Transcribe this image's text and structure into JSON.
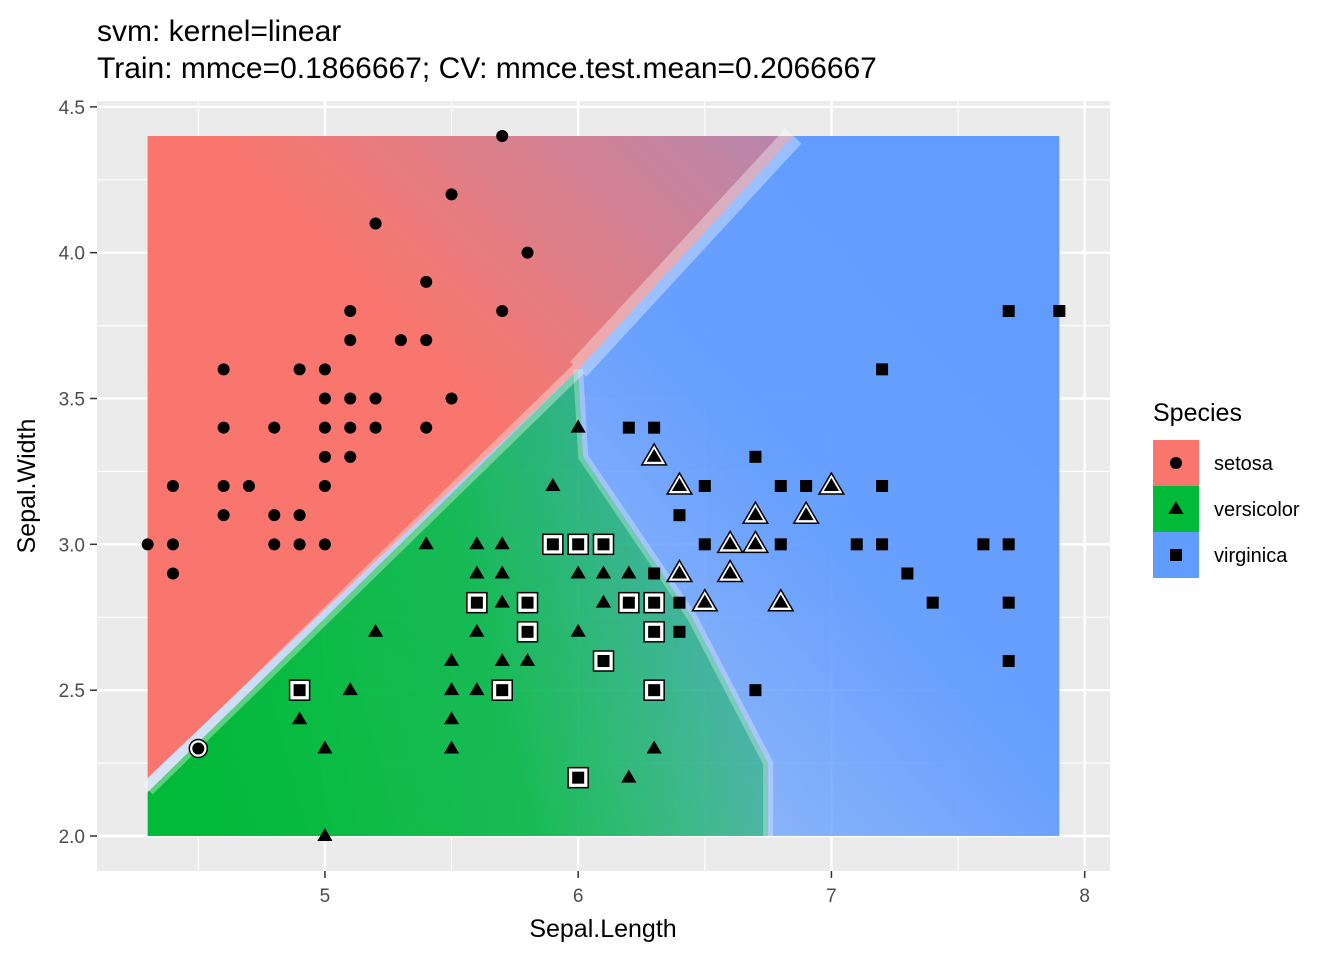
{
  "chart_data": {
    "type": "scatter",
    "title": "svm: kernel=linear",
    "subtitle": "Train: mmce=0.1866667; CV: mmce.test.mean=0.2066667",
    "xlabel": "Sepal.Length",
    "ylabel": "Sepal.Width",
    "xlim": [
      4.1,
      8.1
    ],
    "ylim": [
      1.88,
      4.52
    ],
    "x_ticks": [
      5,
      6,
      7,
      8
    ],
    "x_tick_labels": [
      "5",
      "6",
      "7",
      "8"
    ],
    "y_ticks": [
      2.0,
      2.5,
      3.0,
      3.5,
      4.0,
      4.5
    ],
    "y_tick_labels": [
      "2.0",
      "2.5",
      "3.0",
      "3.5",
      "4.0",
      "4.5"
    ],
    "grid": true,
    "legend": {
      "title": "Species",
      "placement": "right",
      "entries": [
        {
          "name": "setosa",
          "color": "#F8766D",
          "shape": "circle"
        },
        {
          "name": "versicolor",
          "color": "#00BA38",
          "shape": "triangle"
        },
        {
          "name": "virginica",
          "color": "#619CFF",
          "shape": "square"
        }
      ]
    },
    "background_region": {
      "x_range": [
        4.3,
        7.9
      ],
      "y_range": [
        2.0,
        4.4
      ]
    },
    "series": [
      {
        "name": "setosa",
        "shape": "circle",
        "points": [
          [
            4.3,
            3.0
          ],
          [
            4.4,
            2.9
          ],
          [
            4.4,
            3.0
          ],
          [
            4.4,
            3.2
          ],
          [
            4.5,
            2.3
          ],
          [
            4.6,
            3.1
          ],
          [
            4.6,
            3.2
          ],
          [
            4.6,
            3.4
          ],
          [
            4.6,
            3.6
          ],
          [
            4.7,
            3.2
          ],
          [
            4.8,
            3.0
          ],
          [
            4.8,
            3.1
          ],
          [
            4.8,
            3.4
          ],
          [
            4.9,
            3.0
          ],
          [
            4.9,
            3.1
          ],
          [
            4.9,
            3.6
          ],
          [
            5.0,
            3.0
          ],
          [
            5.0,
            3.2
          ],
          [
            5.0,
            3.3
          ],
          [
            5.0,
            3.4
          ],
          [
            5.0,
            3.5
          ],
          [
            5.0,
            3.6
          ],
          [
            5.1,
            3.3
          ],
          [
            5.1,
            3.4
          ],
          [
            5.1,
            3.5
          ],
          [
            5.1,
            3.7
          ],
          [
            5.1,
            3.8
          ],
          [
            5.2,
            3.4
          ],
          [
            5.2,
            3.5
          ],
          [
            5.2,
            4.1
          ],
          [
            5.3,
            3.7
          ],
          [
            5.4,
            3.4
          ],
          [
            5.4,
            3.7
          ],
          [
            5.4,
            3.9
          ],
          [
            5.5,
            3.5
          ],
          [
            5.5,
            4.2
          ],
          [
            5.7,
            3.8
          ],
          [
            5.7,
            4.4
          ],
          [
            5.8,
            4.0
          ]
        ],
        "misclassified": [
          [
            4.5,
            2.3
          ]
        ]
      },
      {
        "name": "versicolor",
        "shape": "triangle",
        "points": [
          [
            4.9,
            2.4
          ],
          [
            5.0,
            2.0
          ],
          [
            5.0,
            2.3
          ],
          [
            5.1,
            2.5
          ],
          [
            5.2,
            2.7
          ],
          [
            5.4,
            3.0
          ],
          [
            5.5,
            2.3
          ],
          [
            5.5,
            2.4
          ],
          [
            5.5,
            2.5
          ],
          [
            5.5,
            2.6
          ],
          [
            5.6,
            2.5
          ],
          [
            5.6,
            2.7
          ],
          [
            5.6,
            2.9
          ],
          [
            5.6,
            3.0
          ],
          [
            5.7,
            2.6
          ],
          [
            5.7,
            2.8
          ],
          [
            5.7,
            2.9
          ],
          [
            5.7,
            3.0
          ],
          [
            5.8,
            2.6
          ],
          [
            5.8,
            2.7
          ],
          [
            5.9,
            3.2
          ],
          [
            6.0,
            2.7
          ],
          [
            6.0,
            2.9
          ],
          [
            6.0,
            3.4
          ],
          [
            6.1,
            2.8
          ],
          [
            6.1,
            2.9
          ],
          [
            6.2,
            2.2
          ],
          [
            6.2,
            2.9
          ],
          [
            6.3,
            2.3
          ],
          [
            6.3,
            2.5
          ],
          [
            6.3,
            3.3
          ],
          [
            6.4,
            2.9
          ],
          [
            6.4,
            3.2
          ],
          [
            6.5,
            2.8
          ],
          [
            6.6,
            2.9
          ],
          [
            6.6,
            3.0
          ],
          [
            6.7,
            3.0
          ],
          [
            6.7,
            3.1
          ],
          [
            6.8,
            2.8
          ],
          [
            6.9,
            3.1
          ],
          [
            7.0,
            3.2
          ]
        ],
        "misclassified": [
          [
            6.3,
            3.3
          ],
          [
            6.4,
            2.9
          ],
          [
            6.4,
            3.2
          ],
          [
            6.5,
            2.8
          ],
          [
            6.6,
            2.9
          ],
          [
            6.6,
            3.0
          ],
          [
            6.7,
            3.0
          ],
          [
            6.7,
            3.1
          ],
          [
            6.8,
            2.8
          ],
          [
            6.9,
            3.1
          ],
          [
            7.0,
            3.2
          ]
        ]
      },
      {
        "name": "virginica",
        "shape": "square",
        "points": [
          [
            4.9,
            2.5
          ],
          [
            5.6,
            2.8
          ],
          [
            5.7,
            2.5
          ],
          [
            5.8,
            2.7
          ],
          [
            5.8,
            2.8
          ],
          [
            5.9,
            3.0
          ],
          [
            6.0,
            2.2
          ],
          [
            6.0,
            3.0
          ],
          [
            6.1,
            2.6
          ],
          [
            6.1,
            3.0
          ],
          [
            6.2,
            2.8
          ],
          [
            6.2,
            3.4
          ],
          [
            6.3,
            2.5
          ],
          [
            6.3,
            2.7
          ],
          [
            6.3,
            2.8
          ],
          [
            6.3,
            2.9
          ],
          [
            6.3,
            3.4
          ],
          [
            6.4,
            2.7
          ],
          [
            6.4,
            2.8
          ],
          [
            6.4,
            3.1
          ],
          [
            6.5,
            3.0
          ],
          [
            6.5,
            3.2
          ],
          [
            6.7,
            2.5
          ],
          [
            6.7,
            3.3
          ],
          [
            6.8,
            3.0
          ],
          [
            6.8,
            3.2
          ],
          [
            6.9,
            3.2
          ],
          [
            7.1,
            3.0
          ],
          [
            7.2,
            3.0
          ],
          [
            7.2,
            3.2
          ],
          [
            7.2,
            3.6
          ],
          [
            7.3,
            2.9
          ],
          [
            7.4,
            2.8
          ],
          [
            7.6,
            3.0
          ],
          [
            7.7,
            2.6
          ],
          [
            7.7,
            2.8
          ],
          [
            7.7,
            3.0
          ],
          [
            7.7,
            3.8
          ],
          [
            7.9,
            3.8
          ]
        ],
        "misclassified": [
          [
            4.9,
            2.5
          ],
          [
            5.6,
            2.8
          ],
          [
            5.7,
            2.5
          ],
          [
            5.8,
            2.7
          ],
          [
            5.8,
            2.8
          ],
          [
            5.9,
            3.0
          ],
          [
            6.0,
            2.2
          ],
          [
            6.0,
            3.0
          ],
          [
            6.1,
            2.6
          ],
          [
            6.1,
            3.0
          ],
          [
            6.2,
            2.8
          ],
          [
            6.3,
            2.5
          ],
          [
            6.3,
            2.7
          ],
          [
            6.3,
            2.8
          ]
        ]
      }
    ]
  }
}
